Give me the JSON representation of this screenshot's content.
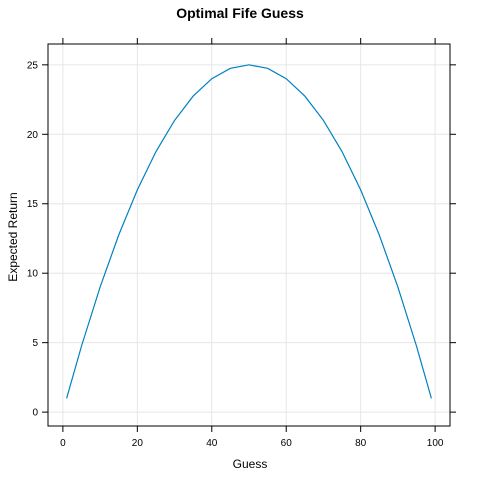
{
  "chart_data": {
    "type": "line",
    "title": "Optimal Fife Guess",
    "xlabel": "Guess",
    "ylabel": "Expected Return",
    "xlim": [
      -4,
      104
    ],
    "ylim": [
      -1,
      26.5
    ],
    "xticks": [
      0,
      20,
      40,
      60,
      80,
      100
    ],
    "yticks": [
      0,
      5,
      10,
      15,
      20,
      25
    ],
    "grid": true,
    "series": [
      {
        "color": "#0080c0",
        "x": [
          1,
          5,
          10,
          15,
          20,
          25,
          30,
          35,
          40,
          45,
          50,
          55,
          60,
          65,
          70,
          75,
          80,
          85,
          90,
          95,
          99
        ],
        "y": [
          0.99,
          4.75,
          9.0,
          12.75,
          16.0,
          18.75,
          21.0,
          22.75,
          24.0,
          24.75,
          25.0,
          24.75,
          24.0,
          22.75,
          21.0,
          18.75,
          16.0,
          12.75,
          9.0,
          4.75,
          0.99
        ]
      }
    ]
  }
}
